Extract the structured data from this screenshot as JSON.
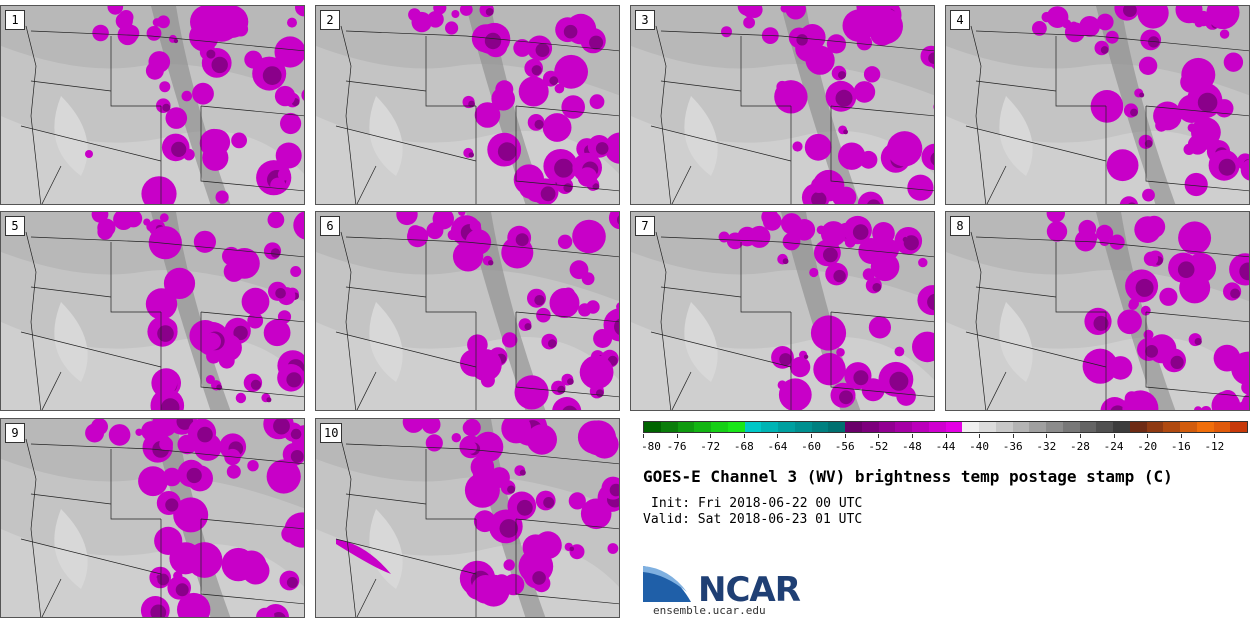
{
  "panels": [
    {
      "label": "1"
    },
    {
      "label": "2"
    },
    {
      "label": "3"
    },
    {
      "label": "4"
    },
    {
      "label": "5"
    },
    {
      "label": "6"
    },
    {
      "label": "7"
    },
    {
      "label": "8"
    },
    {
      "label": "9"
    },
    {
      "label": "10"
    }
  ],
  "colorbar": {
    "colors": [
      "#006400",
      "#0a7d0a",
      "#0f9a0f",
      "#13b513",
      "#16d016",
      "#19e619",
      "#00c8c8",
      "#00b4b4",
      "#00a0a0",
      "#009090",
      "#008080",
      "#007070",
      "#6a006a",
      "#7d007d",
      "#920092",
      "#a600a6",
      "#bb00bb",
      "#d000d0",
      "#e400e4",
      "#f0f0f0",
      "#dcdcdc",
      "#c8c8c8",
      "#b4b4b4",
      "#a0a0a0",
      "#8c8c8c",
      "#787878",
      "#646464",
      "#505050",
      "#3c3c3c",
      "#6e2b14",
      "#8f3a12",
      "#b04a10",
      "#d25c0c",
      "#f06e0a",
      "#e05a0a",
      "#c83a0a"
    ],
    "tick_labels": [
      "-80",
      "-76",
      "-72",
      "-68",
      "-64",
      "-60",
      "-56",
      "-52",
      "-48",
      "-44",
      "-40",
      "-36",
      "-32",
      "-28",
      "-24",
      "-20",
      "-16",
      "-12"
    ]
  },
  "title": "GOES-E Channel 3 (WV) brightness temp postage stamp (C)",
  "init": "Init: Fri 2018-06-22 00 UTC",
  "valid": "Valid: Sat 2018-06-23 01 UTC",
  "logo": {
    "text": "NCAR",
    "url": "ensemble.ucar.edu"
  }
}
